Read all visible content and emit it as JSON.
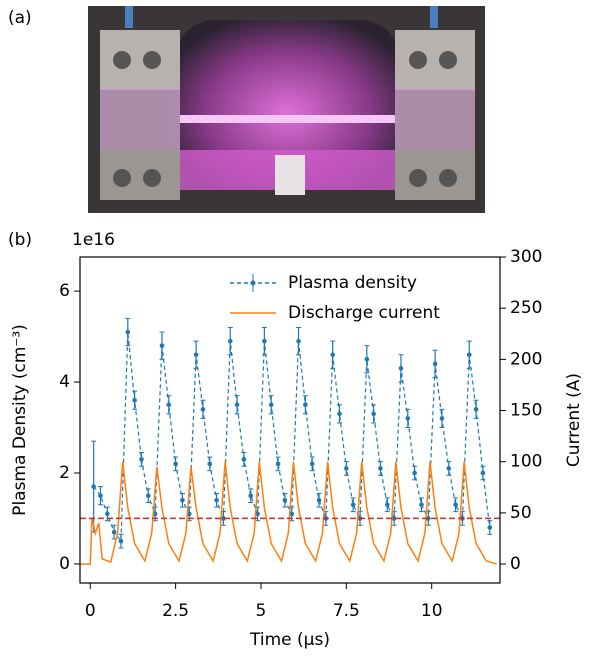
{
  "panel_a": {
    "label": "(a)"
  },
  "chart_data": {
    "type": "errorbar_twin",
    "panel_label": "(b)",
    "offset_text": "1e16",
    "xlabel": "Time (μs)",
    "ylabel": "Plasma Density (cm⁻³)",
    "y2label": "Current (A)",
    "xlim": [
      -0.3,
      12
    ],
    "xticks": [
      0,
      2.5,
      5,
      7.5,
      10
    ],
    "ylim": [
      -0.42,
      6.75
    ],
    "yticks": [
      0,
      2,
      4,
      6
    ],
    "y2lim": [
      -18.5,
      300
    ],
    "y2ticks": [
      0,
      50,
      100,
      150,
      200,
      250,
      300
    ],
    "hline": {
      "value": 1.0,
      "color": "#d62728"
    },
    "legend": "upper right",
    "series": [
      {
        "name": "Plasma density",
        "color": "#1f77b4",
        "x": [
          0.1,
          0.3,
          0.5,
          0.7,
          0.9,
          1.1,
          1.3,
          1.5,
          1.7,
          1.9,
          2.1,
          2.3,
          2.5,
          2.7,
          2.9,
          3.1,
          3.3,
          3.5,
          3.7,
          3.9,
          4.1,
          4.3,
          4.5,
          4.7,
          4.9,
          5.1,
          5.3,
          5.5,
          5.7,
          5.9,
          6.1,
          6.3,
          6.5,
          6.7,
          6.9,
          7.1,
          7.3,
          7.5,
          7.7,
          7.9,
          8.1,
          8.3,
          8.5,
          8.7,
          8.9,
          9.1,
          9.3,
          9.5,
          9.7,
          9.9,
          10.1,
          10.3,
          10.5,
          10.7,
          10.9,
          11.1,
          11.3,
          11.5,
          11.7
        ],
        "values": [
          1.7,
          1.5,
          1.1,
          0.7,
          0.5,
          5.1,
          3.6,
          2.3,
          1.5,
          1.1,
          4.8,
          3.5,
          2.2,
          1.4,
          1.1,
          4.6,
          3.4,
          2.2,
          1.4,
          1.0,
          4.9,
          3.5,
          2.3,
          1.5,
          1.1,
          4.9,
          3.5,
          2.2,
          1.4,
          1.1,
          4.9,
          3.5,
          2.2,
          1.4,
          1.0,
          4.6,
          3.3,
          2.1,
          1.3,
          1.0,
          4.5,
          3.3,
          2.1,
          1.3,
          1.0,
          4.3,
          3.2,
          2.0,
          1.3,
          1.0,
          4.4,
          3.2,
          2.1,
          1.3,
          1.0,
          4.6,
          3.4,
          2.0,
          0.8
        ],
        "yerr": [
          1.0,
          0.2,
          0.15,
          0.15,
          0.15,
          0.3,
          0.2,
          0.15,
          0.15,
          0.15,
          0.3,
          0.2,
          0.15,
          0.15,
          0.15,
          0.3,
          0.2,
          0.15,
          0.15,
          0.15,
          0.3,
          0.2,
          0.15,
          0.15,
          0.15,
          0.3,
          0.2,
          0.15,
          0.15,
          0.15,
          0.3,
          0.2,
          0.15,
          0.15,
          0.15,
          0.3,
          0.2,
          0.15,
          0.15,
          0.15,
          0.3,
          0.2,
          0.15,
          0.15,
          0.15,
          0.3,
          0.2,
          0.15,
          0.15,
          0.15,
          0.3,
          0.2,
          0.15,
          0.15,
          0.15,
          0.3,
          0.2,
          0.15,
          0.15
        ]
      },
      {
        "name": "Discharge current",
        "color": "#ff7f0e",
        "axis": "y2",
        "x": [
          -0.3,
          0,
          0.05,
          0.15,
          0.25,
          0.35,
          0.6,
          0.8,
          0.95,
          1.1,
          1.3,
          1.6,
          1.8,
          1.95,
          2.1,
          2.3,
          2.6,
          2.8,
          2.95,
          3.1,
          3.3,
          3.6,
          3.8,
          3.95,
          4.1,
          4.3,
          4.6,
          4.8,
          4.95,
          5.1,
          5.3,
          5.6,
          5.8,
          5.95,
          6.1,
          6.3,
          6.6,
          6.8,
          6.95,
          7.1,
          7.3,
          7.6,
          7.8,
          7.95,
          8.1,
          8.3,
          8.6,
          8.8,
          8.95,
          9.1,
          9.3,
          9.6,
          9.8,
          9.95,
          10.1,
          10.3,
          10.6,
          10.8,
          10.95,
          11.1,
          11.3,
          11.6,
          11.9
        ],
        "values": [
          0,
          0,
          45,
          30,
          40,
          5,
          2,
          30,
          100,
          55,
          20,
          3,
          30,
          95,
          55,
          20,
          3,
          30,
          95,
          55,
          20,
          3,
          30,
          100,
          55,
          20,
          3,
          30,
          100,
          55,
          20,
          3,
          30,
          100,
          55,
          20,
          3,
          30,
          100,
          55,
          20,
          3,
          30,
          100,
          55,
          20,
          3,
          30,
          100,
          55,
          20,
          3,
          30,
          100,
          55,
          20,
          3,
          30,
          100,
          55,
          20,
          3,
          0
        ]
      }
    ]
  }
}
